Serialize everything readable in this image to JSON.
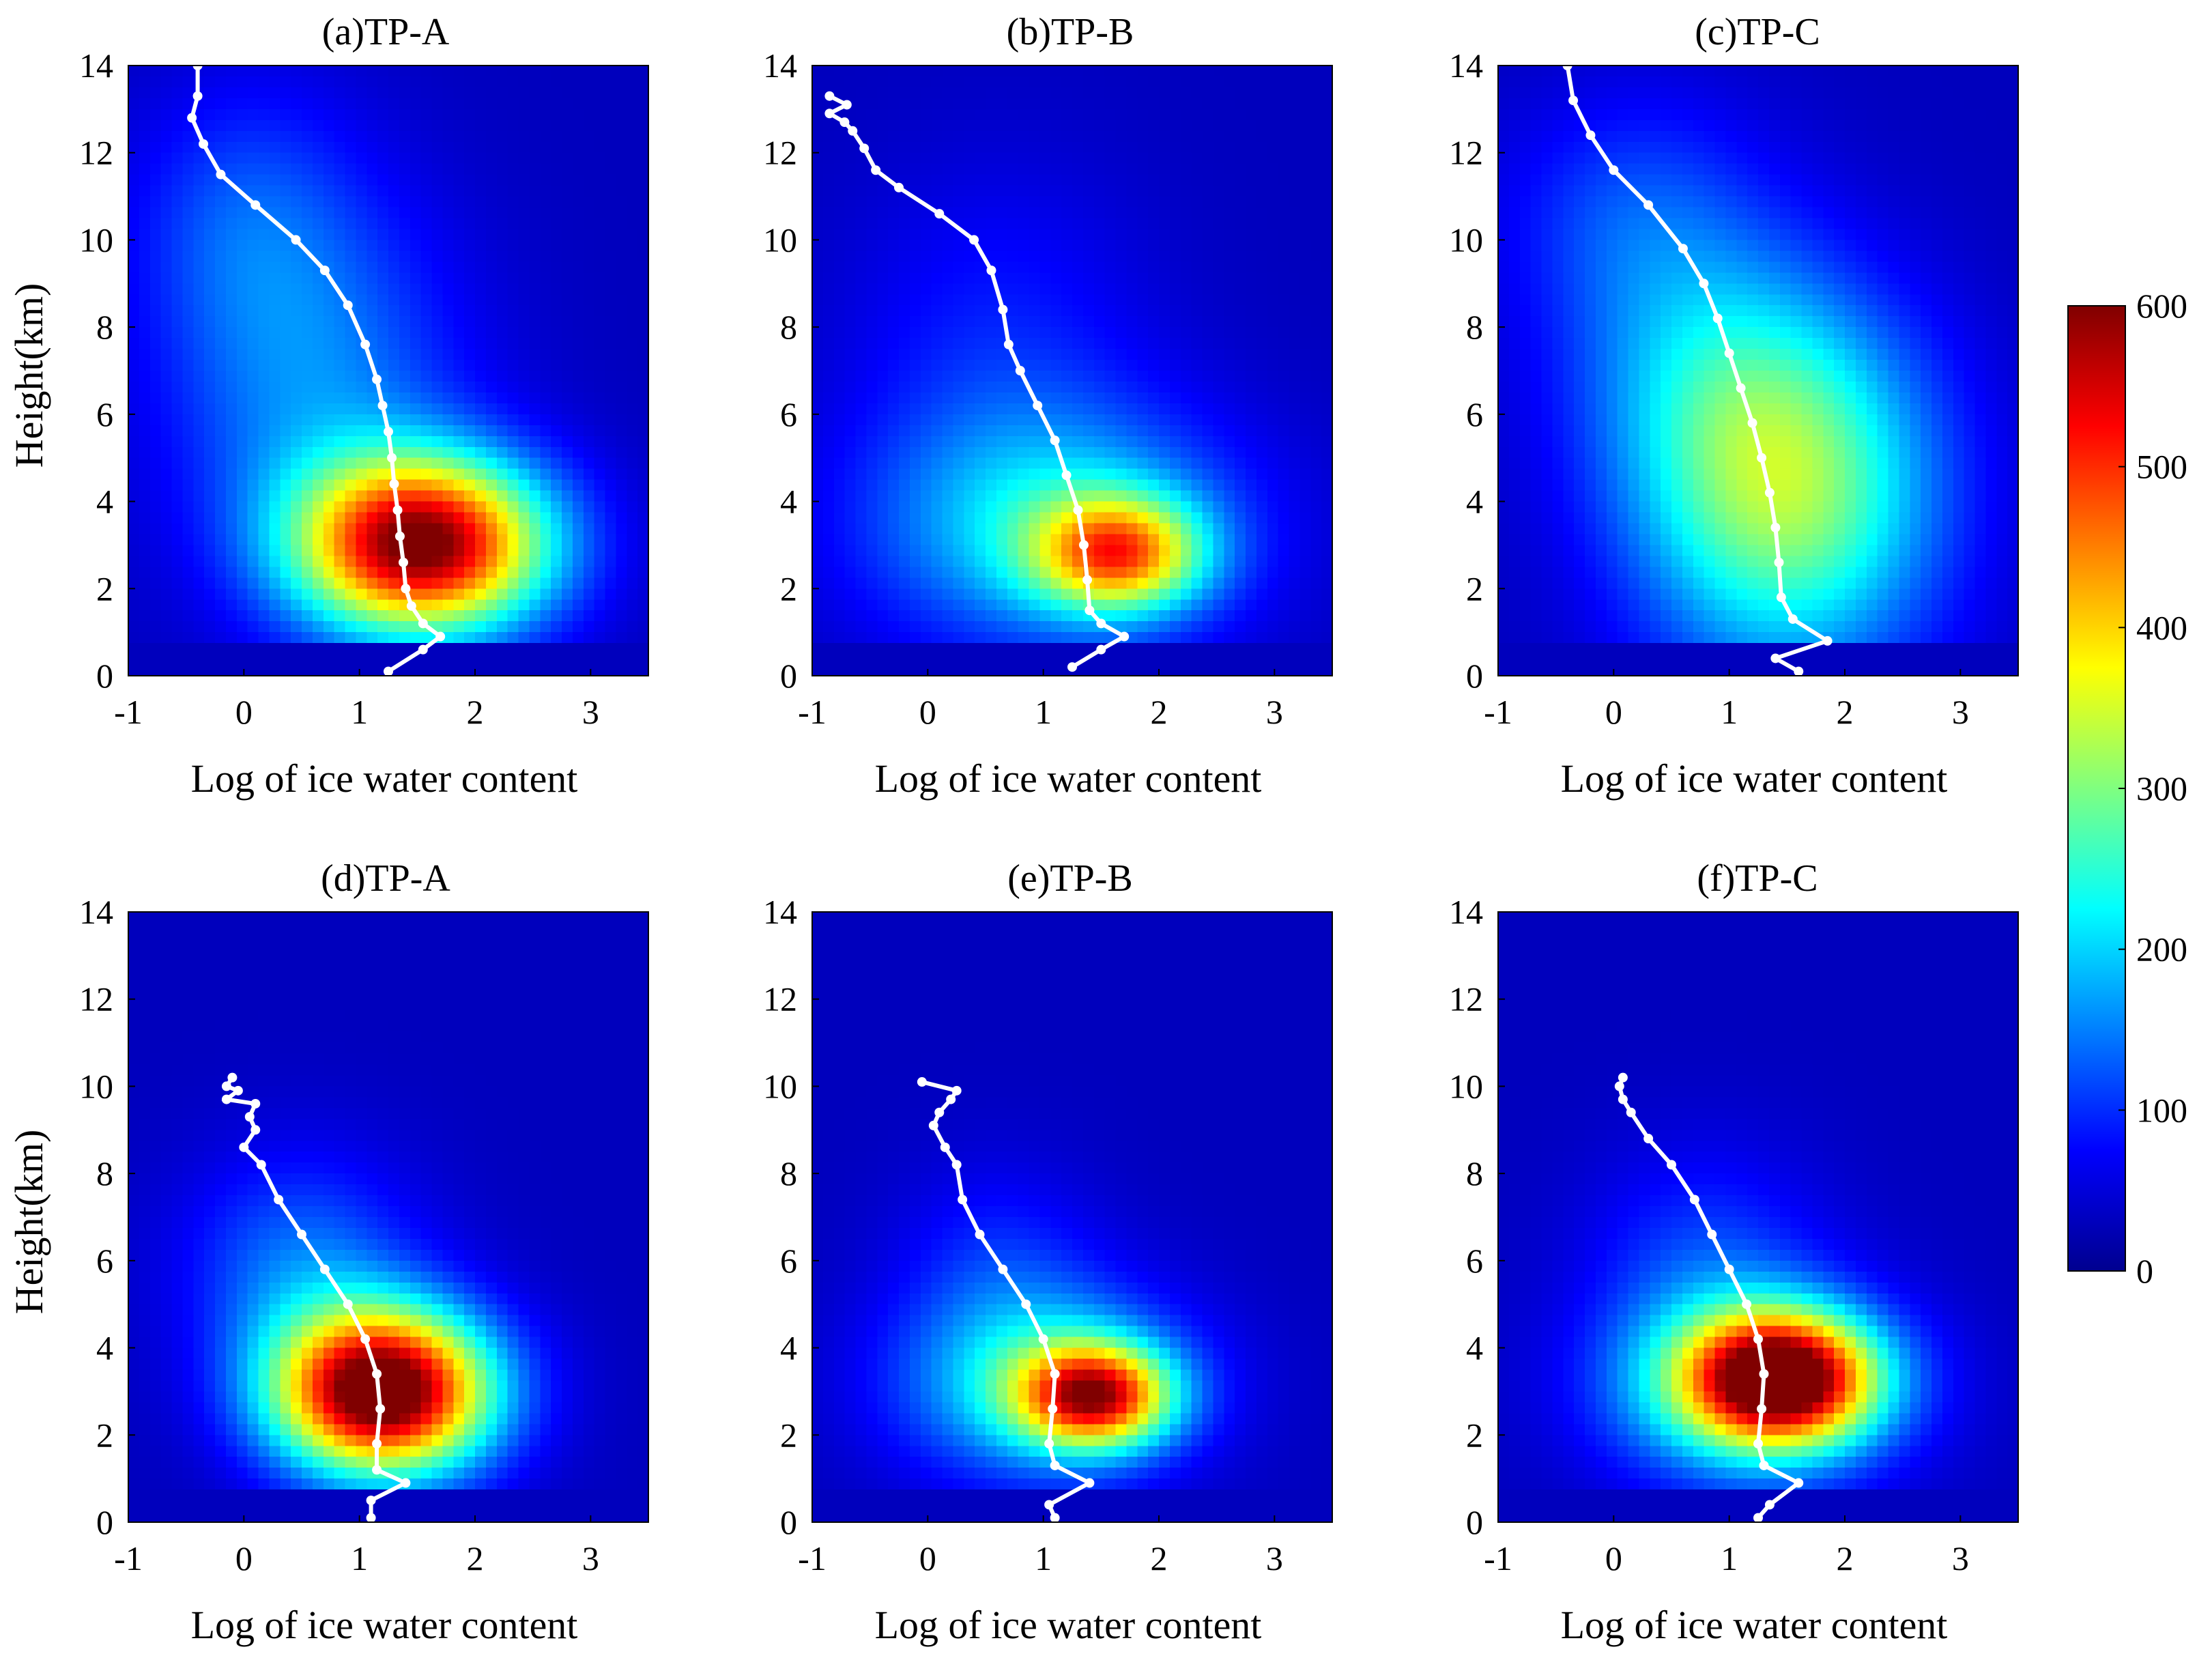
{
  "figure": {
    "colorbar": {
      "min": 0,
      "max": 600,
      "ticks": [
        0,
        100,
        200,
        300,
        400,
        500,
        600
      ],
      "colormap": "jet"
    }
  },
  "chart_data": [
    {
      "type": "heatmap",
      "title": "(a)TP-A",
      "xlabel": "Log of ice water content",
      "ylabel": "Height(km)",
      "xlim": [
        -1,
        3.5
      ],
      "ylim": [
        0,
        14
      ],
      "xticks": [
        -1,
        0,
        1,
        2,
        3
      ],
      "yticks": [
        0,
        2,
        4,
        6,
        8,
        10,
        12,
        14
      ],
      "density_blobs": [
        {
          "x": 1.55,
          "y": 3.0,
          "sx": 0.75,
          "sy": 1.4,
          "amp": 640
        },
        {
          "x": 0.6,
          "y": 6.5,
          "sx": 0.9,
          "sy": 3.0,
          "amp": 130
        },
        {
          "x": 0.0,
          "y": 10.5,
          "sx": 0.7,
          "sy": 2.2,
          "amp": 80
        }
      ],
      "profile": {
        "x": [
          1.25,
          1.55,
          1.7,
          1.55,
          1.45,
          1.4,
          1.38,
          1.35,
          1.33,
          1.3,
          1.28,
          1.25,
          1.2,
          1.15,
          1.05,
          0.9,
          0.7,
          0.45,
          0.1,
          -0.2,
          -0.35,
          -0.45,
          -0.4,
          -0.4
        ],
        "y": [
          0.1,
          0.6,
          0.9,
          1.2,
          1.6,
          2.0,
          2.6,
          3.2,
          3.8,
          4.4,
          5.0,
          5.6,
          6.2,
          6.8,
          7.6,
          8.5,
          9.3,
          10.0,
          10.8,
          11.5,
          12.2,
          12.8,
          13.3,
          14.0
        ]
      }
    },
    {
      "type": "heatmap",
      "title": "(b)TP-B",
      "xlabel": "Log of ice water content",
      "ylabel": "",
      "xlim": [
        -1,
        3.5
      ],
      "ylim": [
        0,
        14
      ],
      "xticks": [
        -1,
        0,
        1,
        2,
        3
      ],
      "yticks": [
        0,
        2,
        4,
        6,
        8,
        10,
        12,
        14
      ],
      "density_blobs": [
        {
          "x": 1.65,
          "y": 2.8,
          "sx": 0.5,
          "sy": 0.9,
          "amp": 380
        },
        {
          "x": 1.1,
          "y": 3.4,
          "sx": 1.1,
          "sy": 1.9,
          "amp": 200
        },
        {
          "x": 0.6,
          "y": 7.5,
          "sx": 0.9,
          "sy": 2.8,
          "amp": 60
        }
      ],
      "profile": {
        "x": [
          1.25,
          1.5,
          1.7,
          1.5,
          1.4,
          1.38,
          1.35,
          1.3,
          1.2,
          1.1,
          0.95,
          0.8,
          0.7,
          0.65,
          0.55,
          0.4,
          0.1,
          -0.25,
          -0.45,
          -0.55,
          -0.65,
          -0.72,
          -0.85,
          -0.7,
          -0.85
        ],
        "y": [
          0.2,
          0.6,
          0.9,
          1.2,
          1.5,
          2.2,
          3.0,
          3.8,
          4.6,
          5.4,
          6.2,
          7.0,
          7.6,
          8.4,
          9.3,
          10.0,
          10.6,
          11.2,
          11.6,
          12.1,
          12.5,
          12.7,
          12.9,
          13.1,
          13.3
        ]
      }
    },
    {
      "type": "heatmap",
      "title": "(c)TP-C",
      "xlabel": "Log of ice water content",
      "ylabel": "",
      "xlim": [
        -1,
        3.5
      ],
      "ylim": [
        0,
        14
      ],
      "xticks": [
        -1,
        0,
        1,
        2,
        3
      ],
      "yticks": [
        0,
        2,
        4,
        6,
        8,
        10,
        12,
        14
      ],
      "density_blobs": [
        {
          "x": 1.5,
          "y": 4.0,
          "sx": 0.9,
          "sy": 2.8,
          "amp": 300
        },
        {
          "x": 0.9,
          "y": 6.8,
          "sx": 0.9,
          "sy": 2.3,
          "amp": 120
        },
        {
          "x": 0.2,
          "y": 10.5,
          "sx": 0.8,
          "sy": 2.0,
          "amp": 90
        }
      ],
      "profile": {
        "x": [
          1.6,
          1.4,
          1.85,
          1.55,
          1.45,
          1.43,
          1.4,
          1.35,
          1.28,
          1.2,
          1.1,
          1.0,
          0.9,
          0.78,
          0.6,
          0.3,
          0.0,
          -0.2,
          -0.35,
          -0.4
        ],
        "y": [
          0.1,
          0.4,
          0.8,
          1.3,
          1.8,
          2.6,
          3.4,
          4.2,
          5.0,
          5.8,
          6.6,
          7.4,
          8.2,
          9.0,
          9.8,
          10.8,
          11.6,
          12.4,
          13.2,
          14.0
        ]
      }
    },
    {
      "type": "heatmap",
      "title": "(d)TP-A",
      "xlabel": "Log of ice water content",
      "ylabel": "Height(km)",
      "xlim": [
        -1,
        3.5
      ],
      "ylim": [
        0,
        14
      ],
      "xticks": [
        -1,
        0,
        1,
        2,
        3
      ],
      "yticks": [
        0,
        2,
        4,
        6,
        8,
        10,
        12,
        14
      ],
      "density_blobs": [
        {
          "x": 1.2,
          "y": 3.0,
          "sx": 0.65,
          "sy": 1.3,
          "amp": 720
        },
        {
          "x": 0.5,
          "y": 5.8,
          "sx": 0.7,
          "sy": 1.8,
          "amp": 120
        }
      ],
      "profile": {
        "x": [
          1.1,
          1.1,
          1.4,
          1.15,
          1.15,
          1.18,
          1.15,
          1.05,
          0.9,
          0.7,
          0.5,
          0.3,
          0.15,
          0.0,
          0.1,
          0.05,
          0.1,
          -0.15,
          -0.05,
          -0.15,
          -0.1
        ],
        "y": [
          0.1,
          0.5,
          0.9,
          1.2,
          1.8,
          2.6,
          3.4,
          4.2,
          5.0,
          5.8,
          6.6,
          7.4,
          8.2,
          8.6,
          9.0,
          9.3,
          9.6,
          9.7,
          9.9,
          10.0,
          10.2
        ]
      }
    },
    {
      "type": "heatmap",
      "title": "(e)TP-B",
      "xlabel": "Log of ice water content",
      "ylabel": "",
      "xlim": [
        -1,
        3.5
      ],
      "ylim": [
        0,
        14
      ],
      "xticks": [
        -1,
        0,
        1,
        2,
        3
      ],
      "yticks": [
        0,
        2,
        4,
        6,
        8,
        10,
        12,
        14
      ],
      "density_blobs": [
        {
          "x": 1.45,
          "y": 2.9,
          "sx": 0.45,
          "sy": 0.8,
          "amp": 470
        },
        {
          "x": 1.0,
          "y": 3.2,
          "sx": 0.85,
          "sy": 1.5,
          "amp": 230
        },
        {
          "x": 0.6,
          "y": 6.0,
          "sx": 0.6,
          "sy": 1.6,
          "amp": 60
        }
      ],
      "profile": {
        "x": [
          1.1,
          1.05,
          1.4,
          1.1,
          1.05,
          1.08,
          1.1,
          1.0,
          0.85,
          0.65,
          0.45,
          0.3,
          0.25,
          0.15,
          0.05,
          0.1,
          0.2,
          0.25,
          -0.05
        ],
        "y": [
          0.1,
          0.4,
          0.9,
          1.3,
          1.8,
          2.6,
          3.4,
          4.2,
          5.0,
          5.8,
          6.6,
          7.4,
          8.2,
          8.6,
          9.1,
          9.4,
          9.7,
          9.9,
          10.1
        ]
      }
    },
    {
      "type": "heatmap",
      "title": "(f)TP-C",
      "xlabel": "Log of ice water content",
      "ylabel": "",
      "xlim": [
        -1,
        3.5
      ],
      "ylim": [
        0,
        14
      ],
      "xticks": [
        -1,
        0,
        1,
        2,
        3
      ],
      "yticks": [
        0,
        2,
        4,
        6,
        8,
        10,
        12,
        14
      ],
      "density_blobs": [
        {
          "x": 1.45,
          "y": 3.3,
          "sx": 0.55,
          "sy": 1.0,
          "amp": 560
        },
        {
          "x": 1.2,
          "y": 3.1,
          "sx": 0.85,
          "sy": 1.5,
          "amp": 260
        },
        {
          "x": 0.8,
          "y": 6.0,
          "sx": 0.7,
          "sy": 1.8,
          "amp": 80
        }
      ],
      "profile": {
        "x": [
          1.25,
          1.35,
          1.6,
          1.3,
          1.25,
          1.28,
          1.3,
          1.25,
          1.15,
          1.0,
          0.85,
          0.7,
          0.5,
          0.3,
          0.15,
          0.08,
          0.05,
          0.08
        ],
        "y": [
          0.1,
          0.4,
          0.9,
          1.3,
          1.8,
          2.6,
          3.4,
          4.2,
          5.0,
          5.8,
          6.6,
          7.4,
          8.2,
          8.8,
          9.4,
          9.7,
          10.0,
          10.2
        ]
      }
    }
  ]
}
